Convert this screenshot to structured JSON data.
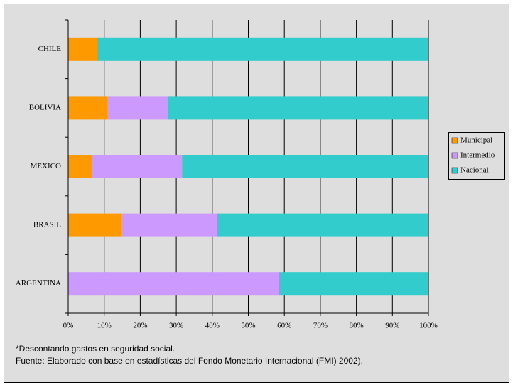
{
  "chart_data": {
    "type": "bar_stacked_horizontal",
    "categories": [
      "CHILE",
      "BOLIVIA",
      "MEXICO",
      "BRASIL",
      "ARGENTINA"
    ],
    "series": [
      {
        "name": "Municipal",
        "color": "#ff9900",
        "values": [
          8,
          11,
          6.5,
          14.6,
          0
        ]
      },
      {
        "name": "Intermedio",
        "color": "#cc99ff",
        "values": [
          0,
          16.6,
          25.1,
          26.8,
          58.4
        ]
      },
      {
        "name": "Nacional",
        "color": "#33cccc",
        "values": [
          92,
          72.4,
          68.4,
          58.6,
          41.6
        ]
      }
    ],
    "xlim": [
      0,
      100
    ],
    "xticks": [
      {
        "value": 0,
        "label": "0%"
      },
      {
        "value": 10,
        "label": "10%"
      },
      {
        "value": 20,
        "label": "20%"
      },
      {
        "value": 30,
        "label": "30%"
      },
      {
        "value": 40,
        "label": "40%"
      },
      {
        "value": 50,
        "label": "50%"
      },
      {
        "value": 60,
        "label": "60%"
      },
      {
        "value": 70,
        "label": "70%"
      },
      {
        "value": 80,
        "label": "80%"
      },
      {
        "value": 90,
        "label": "90%"
      },
      {
        "value": 100,
        "label": "100%"
      }
    ],
    "grid": true,
    "legend": "right",
    "notes": [
      "*Descontando gastos en seguridad social.",
      "Fuente: Elaborado con base en estadísticas del Fondo Monetario Internacional (FMI) 2002)."
    ]
  }
}
